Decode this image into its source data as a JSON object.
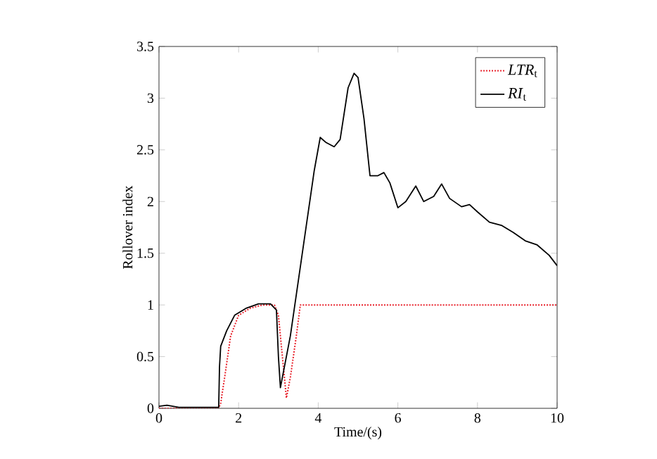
{
  "chart_data": {
    "type": "line",
    "xlabel": "Time/(s)",
    "ylabel": "Rollover index",
    "xlim": [
      0,
      10
    ],
    "ylim": [
      0,
      3.5
    ],
    "xticks": [
      0,
      2,
      4,
      6,
      8,
      10
    ],
    "yticks": [
      0,
      0.5,
      1,
      1.5,
      2,
      2.5,
      3,
      3.5
    ],
    "legend": "top right",
    "grid": false,
    "series": [
      {
        "name": "*LTR*$_{t}$",
        "color": "#e8202a",
        "line_style": "dotted",
        "x": [
          0,
          1.5,
          1.55,
          1.65,
          1.8,
          2.0,
          2.3,
          2.6,
          2.9,
          3.0,
          3.1,
          3.2,
          3.3,
          3.45,
          3.55,
          10
        ],
        "values": [
          0,
          0,
          0.05,
          0.3,
          0.7,
          0.9,
          0.97,
          1.0,
          1.0,
          0.9,
          0.5,
          0.1,
          0.3,
          0.7,
          1.0,
          1.0
        ]
      },
      {
        "name": "*RI*$_{t}$",
        "color": "#000000",
        "line_style": "solid",
        "x": [
          0,
          0.2,
          0.5,
          1.5,
          1.52,
          1.55,
          1.7,
          1.9,
          2.2,
          2.5,
          2.8,
          2.95,
          3.0,
          3.05,
          3.1,
          3.3,
          3.6,
          3.9,
          4.05,
          4.2,
          4.4,
          4.55,
          4.75,
          4.9,
          5.0,
          5.15,
          5.3,
          5.5,
          5.65,
          5.8,
          6.0,
          6.2,
          6.45,
          6.65,
          6.9,
          7.1,
          7.3,
          7.6,
          7.8,
          8.0,
          8.3,
          8.6,
          8.9,
          9.2,
          9.5,
          9.8,
          10
        ],
        "values": [
          0.02,
          0.03,
          0.01,
          0.01,
          0.4,
          0.6,
          0.75,
          0.9,
          0.97,
          1.01,
          1.01,
          0.95,
          0.5,
          0.2,
          0.3,
          0.7,
          1.5,
          2.3,
          2.62,
          2.57,
          2.53,
          2.6,
          3.1,
          3.24,
          3.2,
          2.8,
          2.25,
          2.25,
          2.28,
          2.18,
          1.94,
          2.0,
          2.15,
          2.0,
          2.05,
          2.17,
          2.03,
          1.95,
          1.97,
          1.9,
          1.8,
          1.77,
          1.7,
          1.62,
          1.58,
          1.48,
          1.38
        ]
      }
    ]
  }
}
